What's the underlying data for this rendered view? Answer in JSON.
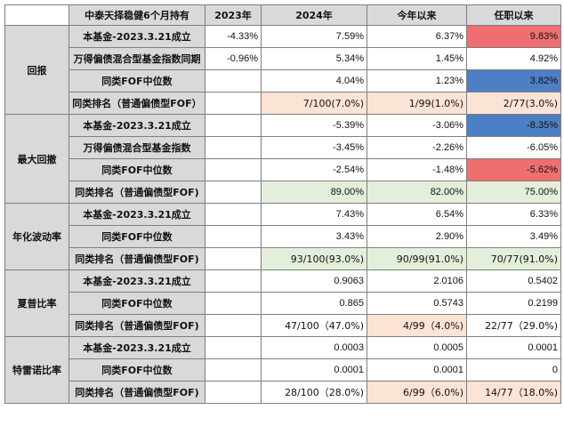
{
  "header": {
    "corner": "",
    "fund_name": "中泰天择稳健6个月持有",
    "col_2023": "2023年",
    "col_2024": "2024年",
    "col_ytd": "今年以来",
    "col_tenure": "任职以来"
  },
  "sections": {
    "return": {
      "label": "回报",
      "rows": [
        {
          "label": "本基金-2023.3.21成立",
          "y2023": "-4.33%",
          "y2024": "7.59%",
          "ytd": "6.37%",
          "tenure": "9.83%"
        },
        {
          "label": "万得偏债混合型基金指数同期",
          "y2023": "-0.96%",
          "y2024": "5.34%",
          "ytd": "1.45%",
          "tenure": "4.92%"
        },
        {
          "label": "同类FOF中位数",
          "y2023": "",
          "y2024": "4.04%",
          "ytd": "1.23%",
          "tenure": "3.82%"
        },
        {
          "label": "同类排名（普通偏债型FOF）",
          "y2023": "",
          "y2024": "7/100(7.0%)",
          "ytd": "1/99(1.0%)",
          "tenure": "2/77(3.0%)"
        }
      ]
    },
    "drawdown": {
      "label": "最大回撤",
      "rows": [
        {
          "label": "本基金-2023.3.21成立",
          "y2023": "",
          "y2024": "-5.39%",
          "ytd": "-3.06%",
          "tenure": "-8.35%"
        },
        {
          "label": "万得偏债混合型基金指数",
          "y2023": "",
          "y2024": "-3.45%",
          "ytd": "-2.26%",
          "tenure": "-6.05%"
        },
        {
          "label": "同类FOF中位数",
          "y2023": "",
          "y2024": "-2.54%",
          "ytd": "-1.48%",
          "tenure": "-5.62%"
        },
        {
          "label": "同类排名（普通偏债型FOF)",
          "y2023": "",
          "y2024": "89.00%",
          "ytd": "82.00%",
          "tenure": "75.00%"
        }
      ]
    },
    "volatility": {
      "label": "年化波动率",
      "rows": [
        {
          "label": "本基金-2023.3.21成立",
          "y2023": "",
          "y2024": "7.43%",
          "ytd": "6.54%",
          "tenure": "6.33%"
        },
        {
          "label": "同类FOF中位数",
          "y2023": "",
          "y2024": "3.43%",
          "ytd": "2.90%",
          "tenure": "3.49%"
        },
        {
          "label": "同类排名（普通偏债型FOF)",
          "y2023": "",
          "y2024": "93/100(93.0%)",
          "ytd": "90/99(91.0%)",
          "tenure": "70/77(91.0%)"
        }
      ]
    },
    "sharpe": {
      "label": "夏普比率",
      "rows": [
        {
          "label": "本基金-2023.3.21成立",
          "y2023": "",
          "y2024": "0.9063",
          "ytd": "2.0106",
          "tenure": "0.5402"
        },
        {
          "label": "同类FOF中位数",
          "y2023": "",
          "y2024": "0.865",
          "ytd": "0.5743",
          "tenure": "0.2199"
        },
        {
          "label": "同类排名（普通偏债型FOF)",
          "y2023": "",
          "y2024": "47/100（47.0%)",
          "ytd": "4/99（4.0%)",
          "tenure": "22/77（29.0%)"
        }
      ]
    },
    "treynor": {
      "label": "特雷诺比率",
      "rows": [
        {
          "label": "本基金-2023.3.21成立",
          "y2023": "",
          "y2024": "0.0003",
          "ytd": "0.0005",
          "tenure": "0.0001"
        },
        {
          "label": "同类FOF中位数",
          "y2023": "",
          "y2024": "0.0001",
          "ytd": "0.0001",
          "tenure": "0"
        },
        {
          "label": "同类排名（普通偏债型FOF)",
          "y2023": "",
          "y2024": "28/100（28.0%)",
          "ytd": "6/99（6.0%)",
          "tenure": "14/77（18.0%)"
        }
      ]
    }
  },
  "highlight_colors": {
    "red": "#ef6f71",
    "blue": "#4d7fc4",
    "peach": "#fbe3d6",
    "green": "#e3efda",
    "header_gray": "#d9d9d9"
  }
}
